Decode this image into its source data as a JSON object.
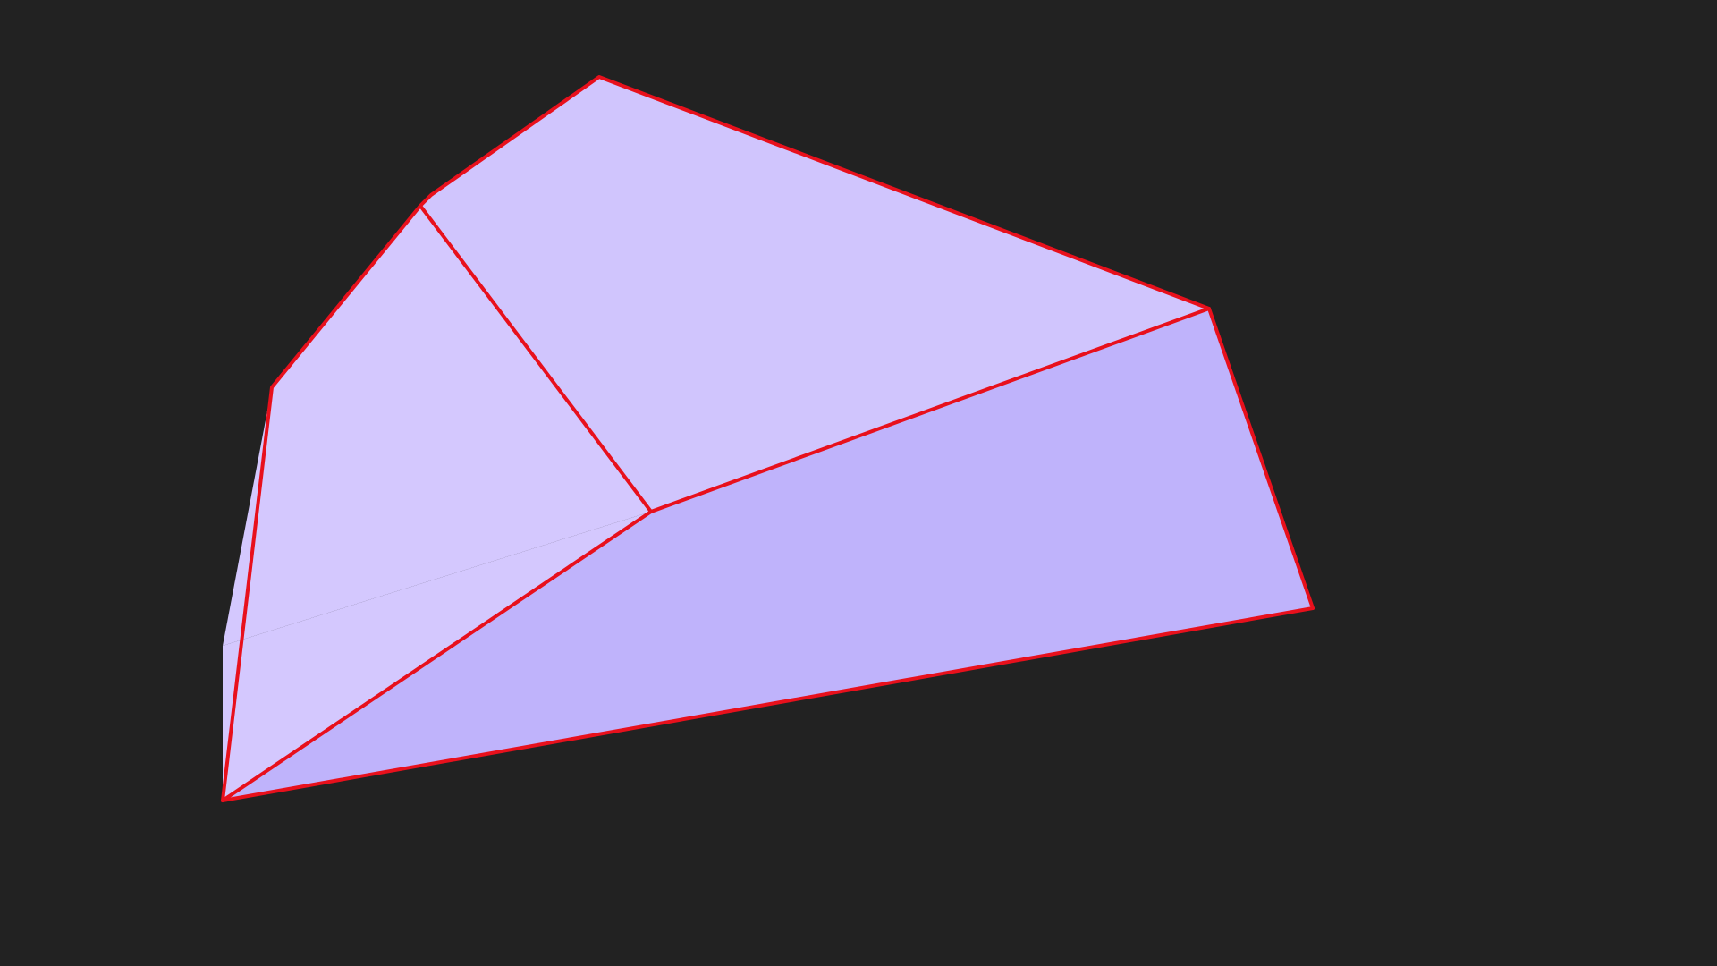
{
  "scene": {
    "background_color": "#222222",
    "edge_color": "#e8101c",
    "faces": [
      {
        "name": "left-face",
        "color": "#d4c8fe"
      },
      {
        "name": "top-face",
        "color": "#d0c5fd"
      },
      {
        "name": "front-face",
        "color": "#bfb3fb"
      }
    ]
  }
}
